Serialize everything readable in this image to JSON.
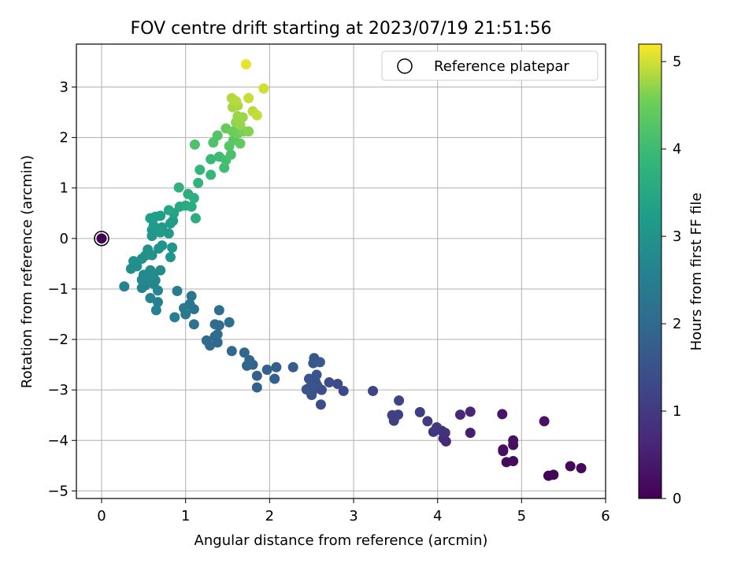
{
  "chart_data": {
    "type": "scatter",
    "title": "FOV centre drift starting at 2023/07/19 21:51:56",
    "xlabel": "Angular distance from reference (arcmin)",
    "ylabel": "Rotation from reference (arcmin)",
    "xlim": [
      -0.3,
      6.0
    ],
    "ylim": [
      -5.15,
      3.85
    ],
    "xticks": [
      0,
      1,
      2,
      3,
      4,
      5,
      6
    ],
    "yticks": [
      -5,
      -4,
      -3,
      -2,
      -1,
      0,
      1,
      2,
      3
    ],
    "grid": true,
    "legend": {
      "placement": "top-right",
      "entries": [
        "Reference platepar"
      ]
    },
    "reference_point": {
      "x": 0,
      "y": 0
    },
    "colorbar": {
      "label": "Hours from first FF file",
      "colormap": "viridis",
      "range": [
        0,
        5.2
      ],
      "ticks": [
        0,
        1,
        2,
        3,
        4,
        5
      ]
    },
    "points": [
      {
        "x": 5.32,
        "y": -4.7,
        "c": 0.05
      },
      {
        "x": 5.38,
        "y": -4.68,
        "c": 0.07
      },
      {
        "x": 5.58,
        "y": -4.51,
        "c": 0.1
      },
      {
        "x": 5.71,
        "y": -4.55,
        "c": 0.12
      },
      {
        "x": 4.82,
        "y": -4.43,
        "c": 0.15
      },
      {
        "x": 4.9,
        "y": -4.41,
        "c": 0.17
      },
      {
        "x": 4.78,
        "y": -4.18,
        "c": 0.2
      },
      {
        "x": 4.78,
        "y": -4.21,
        "c": 0.22
      },
      {
        "x": 4.9,
        "y": -4.09,
        "c": 0.25
      },
      {
        "x": 4.9,
        "y": -4.0,
        "c": 0.27
      },
      {
        "x": 5.27,
        "y": -3.62,
        "c": 0.3
      },
      {
        "x": 4.77,
        "y": -3.48,
        "c": 0.33
      },
      {
        "x": 4.39,
        "y": -3.85,
        "c": 0.5
      },
      {
        "x": 4.39,
        "y": -3.43,
        "c": 0.6
      },
      {
        "x": 4.27,
        "y": -3.49,
        "c": 0.65
      },
      {
        "x": 4.1,
        "y": -4.02,
        "c": 0.7
      },
      {
        "x": 4.07,
        "y": -3.96,
        "c": 0.75
      },
      {
        "x": 4.09,
        "y": -3.85,
        "c": 0.8
      },
      {
        "x": 4.05,
        "y": -3.81,
        "c": 0.85
      },
      {
        "x": 3.95,
        "y": -3.83,
        "c": 0.9
      },
      {
        "x": 3.99,
        "y": -3.74,
        "c": 0.95
      },
      {
        "x": 3.88,
        "y": -3.62,
        "c": 1.0
      },
      {
        "x": 3.79,
        "y": -3.44,
        "c": 1.05
      },
      {
        "x": 3.48,
        "y": -3.61,
        "c": 1.1
      },
      {
        "x": 3.46,
        "y": -3.5,
        "c": 1.12
      },
      {
        "x": 3.53,
        "y": -3.49,
        "c": 1.15
      },
      {
        "x": 3.54,
        "y": -3.21,
        "c": 1.18
      },
      {
        "x": 3.23,
        "y": -3.02,
        "c": 1.2
      },
      {
        "x": 2.88,
        "y": -3.02,
        "c": 1.3
      },
      {
        "x": 2.81,
        "y": -2.88,
        "c": 1.35
      },
      {
        "x": 2.71,
        "y": -2.85,
        "c": 1.38
      },
      {
        "x": 2.61,
        "y": -3.29,
        "c": 1.4
      },
      {
        "x": 2.62,
        "y": -3.0,
        "c": 1.42
      },
      {
        "x": 2.58,
        "y": -2.97,
        "c": 1.44
      },
      {
        "x": 2.57,
        "y": -2.92,
        "c": 1.46
      },
      {
        "x": 2.5,
        "y": -3.1,
        "c": 1.48
      },
      {
        "x": 2.44,
        "y": -2.99,
        "c": 1.5
      },
      {
        "x": 2.48,
        "y": -2.95,
        "c": 1.52
      },
      {
        "x": 2.55,
        "y": -2.85,
        "c": 1.54
      },
      {
        "x": 2.47,
        "y": -2.78,
        "c": 1.56
      },
      {
        "x": 2.56,
        "y": -2.7,
        "c": 1.58
      },
      {
        "x": 2.53,
        "y": -2.37,
        "c": 1.6
      },
      {
        "x": 2.52,
        "y": -2.47,
        "c": 1.62
      },
      {
        "x": 2.6,
        "y": -2.45,
        "c": 1.64
      },
      {
        "x": 2.28,
        "y": -2.55,
        "c": 1.7
      },
      {
        "x": 2.08,
        "y": -2.55,
        "c": 1.75
      },
      {
        "x": 2.06,
        "y": -2.78,
        "c": 1.78
      },
      {
        "x": 1.97,
        "y": -2.6,
        "c": 1.8
      },
      {
        "x": 1.85,
        "y": -2.72,
        "c": 1.82
      },
      {
        "x": 1.85,
        "y": -2.95,
        "c": 1.84
      },
      {
        "x": 1.8,
        "y": -2.5,
        "c": 1.86
      },
      {
        "x": 1.73,
        "y": -2.52,
        "c": 1.88
      },
      {
        "x": 1.76,
        "y": -2.41,
        "c": 1.9
      },
      {
        "x": 1.7,
        "y": -2.26,
        "c": 1.92
      },
      {
        "x": 1.55,
        "y": -2.23,
        "c": 1.94
      },
      {
        "x": 1.38,
        "y": -2.06,
        "c": 1.96
      },
      {
        "x": 1.35,
        "y": -1.94,
        "c": 1.98
      },
      {
        "x": 1.29,
        "y": -2.12,
        "c": 2.0
      },
      {
        "x": 1.25,
        "y": -2.02,
        "c": 2.02
      },
      {
        "x": 1.35,
        "y": -1.7,
        "c": 2.04
      },
      {
        "x": 1.4,
        "y": -1.72,
        "c": 2.06
      },
      {
        "x": 1.38,
        "y": -1.9,
        "c": 2.08
      },
      {
        "x": 1.52,
        "y": -1.66,
        "c": 2.1
      },
      {
        "x": 1.4,
        "y": -1.42,
        "c": 2.12
      },
      {
        "x": 1.1,
        "y": -1.7,
        "c": 2.2
      },
      {
        "x": 1.1,
        "y": -1.4,
        "c": 2.25
      },
      {
        "x": 1.05,
        "y": -1.3,
        "c": 2.28
      },
      {
        "x": 1.07,
        "y": -1.14,
        "c": 2.3
      },
      {
        "x": 1.0,
        "y": -1.5,
        "c": 2.35
      },
      {
        "x": 0.98,
        "y": -1.38,
        "c": 2.4
      },
      {
        "x": 0.9,
        "y": -1.04,
        "c": 2.45
      },
      {
        "x": 0.87,
        "y": -1.56,
        "c": 2.5
      },
      {
        "x": 0.65,
        "y": -1.42,
        "c": 2.55
      },
      {
        "x": 0.67,
        "y": -1.26,
        "c": 2.58
      },
      {
        "x": 0.58,
        "y": -1.18,
        "c": 2.6
      },
      {
        "x": 0.27,
        "y": -0.95,
        "c": 2.62
      },
      {
        "x": 0.48,
        "y": -0.98,
        "c": 2.64
      },
      {
        "x": 0.52,
        "y": -0.93,
        "c": 2.66
      },
      {
        "x": 0.62,
        "y": -0.9,
        "c": 2.68
      },
      {
        "x": 0.67,
        "y": -1.03,
        "c": 2.7
      },
      {
        "x": 0.64,
        "y": -0.83,
        "c": 2.72
      },
      {
        "x": 0.58,
        "y": -0.78,
        "c": 2.74
      },
      {
        "x": 0.48,
        "y": -0.82,
        "c": 2.76
      },
      {
        "x": 0.5,
        "y": -0.72,
        "c": 2.78
      },
      {
        "x": 0.62,
        "y": -0.7,
        "c": 2.8
      },
      {
        "x": 0.58,
        "y": -0.63,
        "c": 2.82
      },
      {
        "x": 0.7,
        "y": -0.63,
        "c": 2.84
      },
      {
        "x": 0.35,
        "y": -0.6,
        "c": 2.86
      },
      {
        "x": 0.42,
        "y": -0.55,
        "c": 2.88
      },
      {
        "x": 0.38,
        "y": -0.45,
        "c": 2.9
      },
      {
        "x": 0.48,
        "y": -0.4,
        "c": 2.92
      },
      {
        "x": 0.52,
        "y": -0.34,
        "c": 2.94
      },
      {
        "x": 0.6,
        "y": -0.33,
        "c": 2.96
      },
      {
        "x": 0.55,
        "y": -0.22,
        "c": 2.98
      },
      {
        "x": 0.68,
        "y": -0.2,
        "c": 3.0
      },
      {
        "x": 0.72,
        "y": -0.14,
        "c": 3.02
      },
      {
        "x": 0.82,
        "y": -0.37,
        "c": 3.04
      },
      {
        "x": 0.84,
        "y": -0.18,
        "c": 3.06
      },
      {
        "x": 0.6,
        "y": 0.05,
        "c": 3.08
      },
      {
        "x": 0.7,
        "y": 0.12,
        "c": 3.1
      },
      {
        "x": 0.8,
        "y": 0.1,
        "c": 3.12
      },
      {
        "x": 0.6,
        "y": 0.17,
        "c": 3.14
      },
      {
        "x": 0.62,
        "y": 0.25,
        "c": 3.16
      },
      {
        "x": 0.72,
        "y": 0.22,
        "c": 3.18
      },
      {
        "x": 0.82,
        "y": 0.3,
        "c": 3.2
      },
      {
        "x": 0.85,
        "y": 0.35,
        "c": 3.22
      },
      {
        "x": 0.58,
        "y": 0.4,
        "c": 3.24
      },
      {
        "x": 0.64,
        "y": 0.43,
        "c": 3.26
      },
      {
        "x": 0.7,
        "y": 0.45,
        "c": 3.28
      },
      {
        "x": 0.86,
        "y": 0.5,
        "c": 3.4
      },
      {
        "x": 0.8,
        "y": 0.56,
        "c": 3.45
      },
      {
        "x": 0.93,
        "y": 0.63,
        "c": 3.5
      },
      {
        "x": 1.0,
        "y": 0.65,
        "c": 3.55
      },
      {
        "x": 1.07,
        "y": 0.63,
        "c": 3.6
      },
      {
        "x": 1.12,
        "y": 0.4,
        "c": 3.62
      },
      {
        "x": 1.03,
        "y": 0.88,
        "c": 3.65
      },
      {
        "x": 1.1,
        "y": 0.8,
        "c": 3.7
      },
      {
        "x": 0.92,
        "y": 1.01,
        "c": 3.75
      },
      {
        "x": 1.15,
        "y": 1.1,
        "c": 3.8
      },
      {
        "x": 1.17,
        "y": 1.36,
        "c": 3.85
      },
      {
        "x": 1.3,
        "y": 1.26,
        "c": 3.9
      },
      {
        "x": 1.3,
        "y": 1.57,
        "c": 3.95
      },
      {
        "x": 1.4,
        "y": 1.62,
        "c": 4.0
      },
      {
        "x": 1.46,
        "y": 1.4,
        "c": 4.05
      },
      {
        "x": 1.48,
        "y": 1.55,
        "c": 4.1
      },
      {
        "x": 1.54,
        "y": 1.66,
        "c": 4.15
      },
      {
        "x": 1.11,
        "y": 1.86,
        "c": 4.18
      },
      {
        "x": 1.33,
        "y": 1.9,
        "c": 4.22
      },
      {
        "x": 1.38,
        "y": 2.04,
        "c": 4.25
      },
      {
        "x": 1.52,
        "y": 1.83,
        "c": 4.3
      },
      {
        "x": 1.57,
        "y": 1.95,
        "c": 4.35
      },
      {
        "x": 1.65,
        "y": 1.88,
        "c": 4.4
      },
      {
        "x": 1.48,
        "y": 2.18,
        "c": 4.45
      },
      {
        "x": 1.56,
        "y": 2.12,
        "c": 4.5
      },
      {
        "x": 1.62,
        "y": 2.08,
        "c": 4.55
      },
      {
        "x": 1.69,
        "y": 2.12,
        "c": 4.6
      },
      {
        "x": 1.75,
        "y": 2.12,
        "c": 4.65
      },
      {
        "x": 1.6,
        "y": 2.3,
        "c": 4.7
      },
      {
        "x": 1.65,
        "y": 2.25,
        "c": 4.72
      },
      {
        "x": 1.62,
        "y": 2.42,
        "c": 4.74
      },
      {
        "x": 1.68,
        "y": 2.4,
        "c": 4.76
      },
      {
        "x": 1.56,
        "y": 2.6,
        "c": 4.8
      },
      {
        "x": 1.62,
        "y": 2.63,
        "c": 4.82
      },
      {
        "x": 1.55,
        "y": 2.78,
        "c": 4.85
      },
      {
        "x": 1.6,
        "y": 2.72,
        "c": 4.88
      },
      {
        "x": 1.8,
        "y": 2.52,
        "c": 4.9
      },
      {
        "x": 1.85,
        "y": 2.44,
        "c": 4.93
      },
      {
        "x": 1.75,
        "y": 2.78,
        "c": 4.96
      },
      {
        "x": 1.93,
        "y": 2.97,
        "c": 5.0
      },
      {
        "x": 1.72,
        "y": 3.45,
        "c": 5.1
      }
    ]
  }
}
